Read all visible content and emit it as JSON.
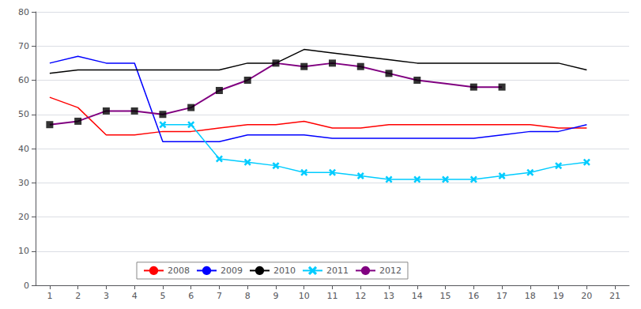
{
  "chart_data": {
    "type": "line",
    "x": [
      1,
      2,
      3,
      4,
      5,
      6,
      7,
      8,
      9,
      10,
      11,
      12,
      13,
      14,
      15,
      16,
      17,
      18,
      19,
      20,
      21
    ],
    "series": [
      {
        "name": "2008",
        "type": "line",
        "color": "#ff0000",
        "values": [
          55,
          52,
          44,
          44,
          45,
          45,
          46,
          47,
          47,
          48,
          46,
          46,
          47,
          47,
          47,
          47,
          47,
          47,
          46,
          46,
          null
        ]
      },
      {
        "name": "2009",
        "type": "line",
        "color": "#0000ff",
        "values": [
          65,
          67,
          65,
          65,
          42,
          42,
          42,
          44,
          44,
          44,
          43,
          43,
          43,
          43,
          43,
          43,
          44,
          45,
          45,
          47,
          null
        ]
      },
      {
        "name": "2010",
        "type": "line",
        "color": "#000000",
        "values": [
          62,
          63,
          63,
          63,
          63,
          63,
          63,
          65,
          65,
          69,
          68,
          67,
          66,
          65,
          65,
          65,
          65,
          65,
          65,
          63,
          null
        ]
      },
      {
        "name": "2011",
        "type": "line",
        "color": "#00ccff",
        "marker": "x",
        "values": [
          null,
          null,
          null,
          null,
          47,
          47,
          37,
          36,
          35,
          33,
          33,
          32,
          31,
          31,
          31,
          31,
          32,
          33,
          35,
          36,
          null
        ]
      },
      {
        "name": "2012",
        "type": "line",
        "color": "#800080",
        "values": [
          47,
          48,
          51,
          51,
          50,
          52,
          57,
          60,
          65,
          64,
          65,
          64,
          62,
          60,
          59,
          58,
          58,
          null,
          null,
          null,
          null
        ]
      },
      {
        "name": "2012",
        "type": "scatter",
        "color": "#000000",
        "marker": "square",
        "values": [
          47,
          48,
          51,
          51,
          50,
          52,
          57,
          60,
          65,
          64,
          65,
          64,
          62,
          60,
          null,
          58,
          58,
          null,
          null,
          null,
          null
        ]
      }
    ],
    "xlim": [
      0.5,
      21.5
    ],
    "xticks": [
      1,
      2,
      3,
      4,
      5,
      6,
      7,
      8,
      9,
      10,
      11,
      12,
      13,
      14,
      15,
      16,
      17,
      18,
      19,
      20,
      21
    ],
    "ylim": [
      0,
      80
    ],
    "yticks": [
      0,
      10,
      20,
      30,
      40,
      50,
      60,
      70,
      80
    ],
    "grid": "y",
    "legend": "lower left"
  }
}
